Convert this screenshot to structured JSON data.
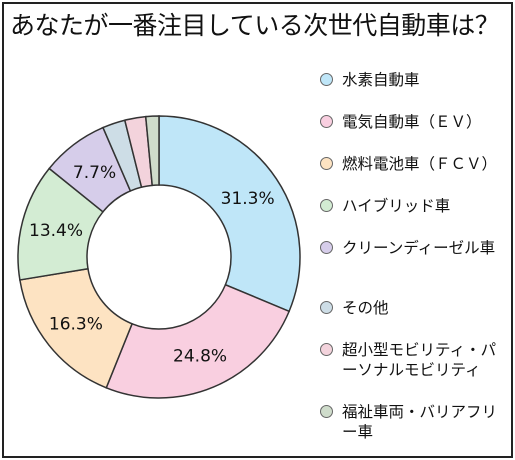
{
  "title": "あなたが一番注目している次世代自動車は？",
  "chart_data": {
    "type": "pie",
    "donut": true,
    "title": "あなたが一番注目している次世代自動車は？",
    "slices": [
      {
        "label": "水素自動車",
        "value": 31.3,
        "value_label": "31.3%",
        "color": "#bfe6f8"
      },
      {
        "label": "電気自動車（ＥＶ）",
        "value": 24.8,
        "value_label": "24.8%",
        "color": "#f9cfe0"
      },
      {
        "label": "燃料電池車（ＦＣＶ）",
        "value": 16.3,
        "value_label": "16.3%",
        "color": "#fde3c2"
      },
      {
        "label": "ハイブリッド車",
        "value": 13.4,
        "value_label": "13.4%",
        "color": "#d3ecd3"
      },
      {
        "label": "クリーンディーゼル車",
        "value": 7.7,
        "value_label": "7.7%",
        "color": "#d6cdea"
      },
      {
        "label": "その他",
        "value": 2.6,
        "value_label": "",
        "color": "#cddde6"
      },
      {
        "label": "超小型モビリティ・パーソナルモビリティ",
        "value": 2.4,
        "value_label": "",
        "color": "#f3d3dc"
      },
      {
        "label": "福祉車両・バリアフリー車",
        "value": 1.5,
        "value_label": "",
        "color": "#cfdccb"
      }
    ],
    "legend_position": "right"
  }
}
